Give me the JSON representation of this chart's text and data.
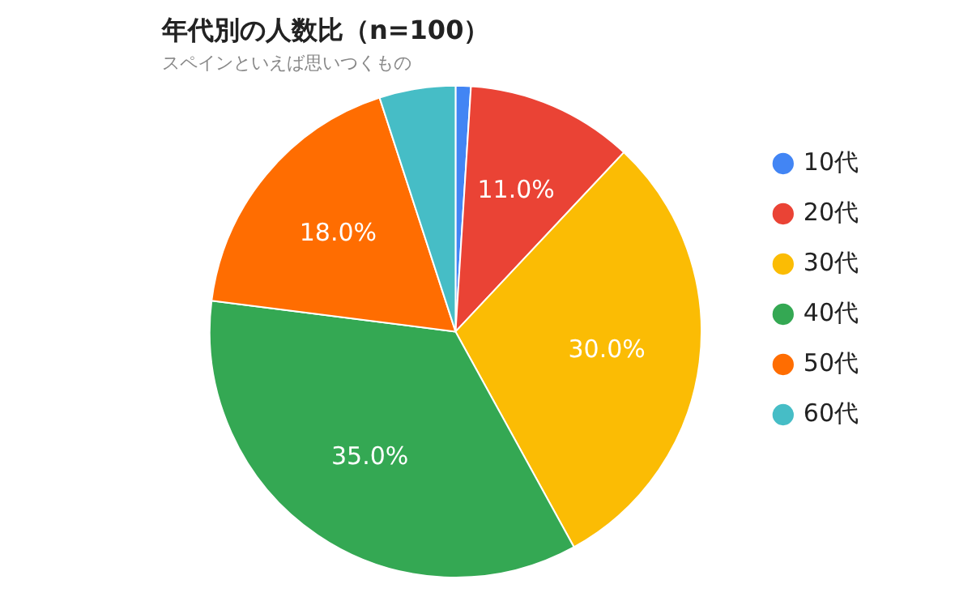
{
  "chart_data": {
    "type": "pie",
    "title": "年代別の人数比（n=100）",
    "subtitle": "スペインといえば思いつくもの",
    "categories": [
      "10代",
      "20代",
      "30代",
      "40代",
      "50代",
      "60代"
    ],
    "values": [
      1,
      11,
      30,
      35,
      18,
      5
    ],
    "colors": [
      "#4285f4",
      "#ea4335",
      "#fbbc04",
      "#34a853",
      "#ff6d01",
      "#46bdc6"
    ],
    "value_labels": [
      null,
      "11.0%",
      "30.0%",
      "35.0%",
      "18.0%",
      null
    ],
    "legend": "right"
  }
}
